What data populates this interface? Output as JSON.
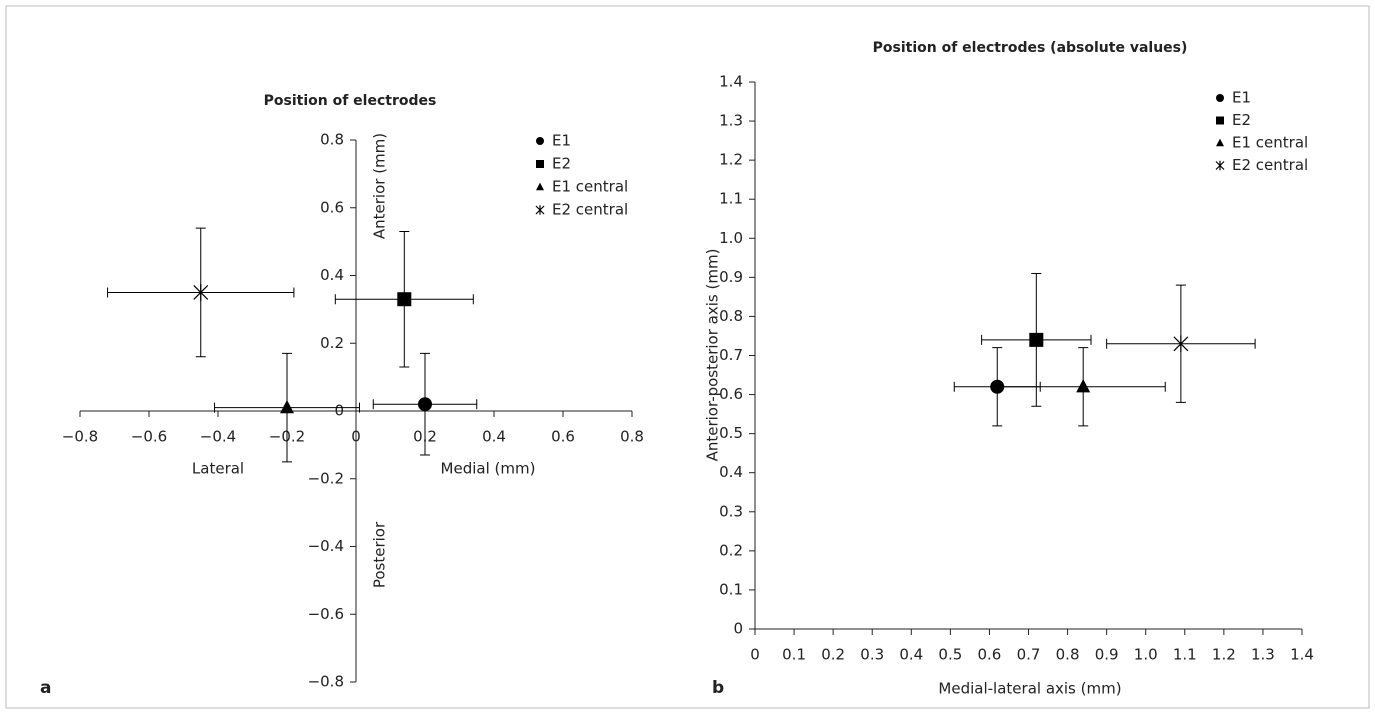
{
  "chart_data": [
    {
      "type": "scatter",
      "panel": "a",
      "title": "Position of electrodes",
      "xlabel_left": "Lateral",
      "xlabel_right": "Medial (mm)",
      "ylabel_top": "Anterior (mm)",
      "ylabel_bottom": "Posterior",
      "xlim": [
        -0.8,
        0.8
      ],
      "ylim": [
        -0.8,
        0.8
      ],
      "xticks": [
        {
          "value": -0.8,
          "label": "−0.8"
        },
        {
          "value": -0.6,
          "label": "−0.6"
        },
        {
          "value": -0.4,
          "label": "−0.4"
        },
        {
          "value": -0.2,
          "label": "−0.2"
        },
        0,
        0.2,
        0.4,
        0.6,
        0.8
      ],
      "yticks": [
        {
          "value": -0.8,
          "label": "−0.8"
        },
        {
          "value": -0.6,
          "label": "−0.6"
        },
        {
          "value": -0.4,
          "label": "−0.4"
        },
        {
          "value": -0.2,
          "label": "−0.2"
        },
        0,
        0.2,
        0.4,
        0.6,
        0.8
      ],
      "series": [
        {
          "name": "E1",
          "marker": "circle",
          "color": "#000000",
          "x": [
            0.2
          ],
          "values": [
            0.02
          ],
          "xerr": [
            0.15
          ],
          "yerr": [
            0.15
          ]
        },
        {
          "name": "E2",
          "marker": "square",
          "color": "#000000",
          "x": [
            0.14
          ],
          "values": [
            0.33
          ],
          "xerr": [
            0.2
          ],
          "yerr": [
            0.2
          ]
        },
        {
          "name": "E1 central",
          "marker": "triangle",
          "color": "#000000",
          "x": [
            -0.2
          ],
          "values": [
            0.01
          ],
          "xerr": [
            0.21
          ],
          "yerr": [
            0.16
          ]
        },
        {
          "name": "E2 central",
          "marker": "asterisk",
          "color": "#000000",
          "x": [
            -0.45
          ],
          "values": [
            0.35
          ],
          "xerr": [
            0.27
          ],
          "yerr": [
            0.19
          ]
        }
      ]
    },
    {
      "type": "scatter",
      "panel": "b",
      "title": "Position of electrodes (absolute values)",
      "xlabel": "Medial-lateral axis (mm)",
      "ylabel": "Anterior-posterior axis (mm)",
      "xlim": [
        0,
        1.4
      ],
      "ylim": [
        0,
        1.4
      ],
      "xticks": [
        0,
        0.1,
        0.2,
        0.3,
        0.4,
        0.5,
        0.6,
        0.7,
        0.8,
        0.9,
        {
          "value": 1,
          "label": "1.0"
        },
        1.1,
        1.2,
        1.3,
        1.4
      ],
      "yticks": [
        0,
        0.1,
        0.2,
        0.3,
        0.4,
        0.5,
        0.6,
        0.7,
        0.8,
        0.9,
        {
          "value": 1,
          "label": "1.0"
        },
        1.1,
        1.2,
        1.3,
        1.4
      ],
      "series": [
        {
          "name": "E1",
          "marker": "circle",
          "color": "#000000",
          "x": [
            0.62
          ],
          "values": [
            0.62
          ],
          "xerr": [
            0.11
          ],
          "yerr": [
            0.1
          ]
        },
        {
          "name": "E2",
          "marker": "square",
          "color": "#000000",
          "x": [
            0.72
          ],
          "values": [
            0.74
          ],
          "xerr": [
            0.14
          ],
          "yerr": [
            0.17
          ]
        },
        {
          "name": "E1 central",
          "marker": "triangle",
          "color": "#000000",
          "x": [
            0.84
          ],
          "values": [
            0.62
          ],
          "xerr": [
            0.21
          ],
          "yerr": [
            0.1
          ]
        },
        {
          "name": "E2 central",
          "marker": "asterisk",
          "color": "#000000",
          "x": [
            1.09
          ],
          "values": [
            0.73
          ],
          "xerr": [
            0.19
          ],
          "yerr": [
            0.15
          ]
        }
      ]
    }
  ]
}
